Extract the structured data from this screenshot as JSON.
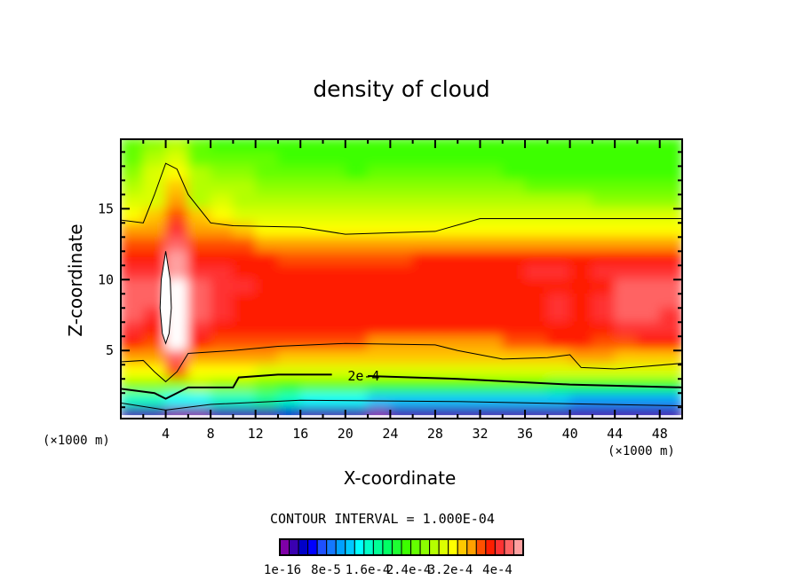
{
  "chart_data": {
    "type": "heatmap",
    "title": "density of cloud",
    "xlabel": "X-coordinate",
    "ylabel": "Z-coordinate",
    "x_unit": "(×1000 m)",
    "y_unit": "(×1000 m)",
    "xlim": [
      0,
      50
    ],
    "ylim": [
      0.2,
      19.9
    ],
    "x_ticks": [
      4,
      8,
      12,
      16,
      20,
      24,
      28,
      32,
      36,
      40,
      44,
      48
    ],
    "y_ticks": [
      5,
      10,
      15
    ],
    "grid": false,
    "contour_interval_text": "CONTOUR INTERVAL = 1.000E-04",
    "colorbar": {
      "colors": [
        "#7f00a8",
        "#3a00b0",
        "#0000c8",
        "#0000ff",
        "#1e50ff",
        "#1478ff",
        "#00a0ff",
        "#00c8ff",
        "#00ffff",
        "#00ffc8",
        "#00ff96",
        "#00ff64",
        "#1eff32",
        "#3cff00",
        "#64ff00",
        "#8cff00",
        "#b4ff00",
        "#dcff00",
        "#ffff00",
        "#ffc800",
        "#ffa000",
        "#ff5000",
        "#ff1e00",
        "#ff3232",
        "#ff6464",
        "#ffa0a0"
      ],
      "labels": [
        "1e-16",
        "8e-5",
        "1.6e-4",
        "2.4e-4",
        "3.2e-4",
        "4e-4"
      ]
    },
    "grid_data": {
      "x_centers_step": 2,
      "z_step": 1,
      "encoding": "char a..z = colour index 0..25, # = above max (white)",
      "rows_top_to_bottom": [
        "opqonnnnnnnnnnnnnnnnnnnnn",
        "oqroooonnnnnnnnnnnnnnnnnn",
        "prsqppoooonoooooonnnnnnnn",
        "qrtqqqppppppppppppooooooo",
        "rruqrqqqqqqqqqqqqqqqqpppp",
        "stvtsrrrrrrrrrrrrrrrrrrrr",
        "uuxuutssssssssssssssssssss",
        "vvyvvvuuuuuuuuuuuuuuuuuuu",
        "wwzwwwwvvvvvvwwwwwwwwwwww",
        "xxzxxwwwwwwwwwwwwwxxwxxxx",
        "yy#yxxwwwwwwwwwwwwwwwwyyy",
        "yy#yxwwwwwwwwwwwwwwxwxyyy",
        "yx#yxwwwwwwwwwwwwwwxwxyyx",
        "xw#xwwwwwwwwwwwwwwwwwwxxx",
        "wv#wvvvvvvvuuuuuuvvwwvvww",
        "uuyuuuutttttttttttttuuttt",
        "ssvsssrrrrrrrrrrrrrrrrrrr",
        "pppqpponooonnnnnnnnmmmmmm",
        "jjiijjkjiiihhhhhhhhhggggg",
        "bbaabbbcbbbabbbbbbbbbbbbb"
      ]
    },
    "contours": [
      {
        "level": "1e-4",
        "points": [
          [
            0,
            14.2
          ],
          [
            2,
            14
          ],
          [
            3,
            16
          ],
          [
            4,
            18.2
          ],
          [
            5,
            17.8
          ],
          [
            6,
            16
          ],
          [
            8,
            14
          ],
          [
            10,
            13.8
          ],
          [
            16,
            13.7
          ],
          [
            20,
            13.2
          ],
          [
            28,
            13.4
          ],
          [
            32,
            14.3
          ],
          [
            42,
            14.3
          ],
          [
            50,
            14.3
          ]
        ]
      },
      {
        "level": "4e-4",
        "points": [
          [
            4,
            12
          ],
          [
            4.4,
            10
          ],
          [
            4.5,
            8
          ],
          [
            4.3,
            6.2
          ],
          [
            4,
            5.5
          ],
          [
            3.7,
            6.2
          ],
          [
            3.5,
            8
          ],
          [
            3.6,
            10
          ],
          [
            4,
            12
          ]
        ]
      },
      {
        "level": "3e-4",
        "points": [
          [
            0,
            4.2
          ],
          [
            2,
            4.3
          ],
          [
            3,
            3.5
          ],
          [
            4,
            2.8
          ],
          [
            5,
            3.5
          ],
          [
            6,
            4.8
          ],
          [
            10,
            5
          ],
          [
            14,
            5.3
          ],
          [
            20,
            5.5
          ],
          [
            28,
            5.4
          ],
          [
            30,
            5
          ],
          [
            34,
            4.4
          ],
          [
            38,
            4.5
          ],
          [
            40,
            4.7
          ],
          [
            41,
            3.8
          ],
          [
            44,
            3.7
          ],
          [
            50,
            4.1
          ]
        ]
      },
      {
        "level": "2e-4",
        "label": "2e-4",
        "label_at": [
          20.2,
          3.2
        ],
        "points": [
          [
            0,
            2.3
          ],
          [
            3,
            2
          ],
          [
            4,
            1.6
          ],
          [
            6,
            2.4
          ],
          [
            10,
            2.4
          ],
          [
            10.5,
            3.1
          ],
          [
            14,
            3.3
          ],
          [
            18.8,
            3.3
          ]
        ],
        "points2": [
          [
            22,
            3.2
          ],
          [
            30,
            3
          ],
          [
            40,
            2.6
          ],
          [
            45,
            2.5
          ],
          [
            50,
            2.4
          ]
        ]
      },
      {
        "level": "1e-4",
        "points": [
          [
            0,
            1.3
          ],
          [
            4,
            0.8
          ],
          [
            8,
            1.2
          ],
          [
            16,
            1.5
          ],
          [
            30,
            1.4
          ],
          [
            50,
            1.1
          ]
        ]
      }
    ]
  }
}
